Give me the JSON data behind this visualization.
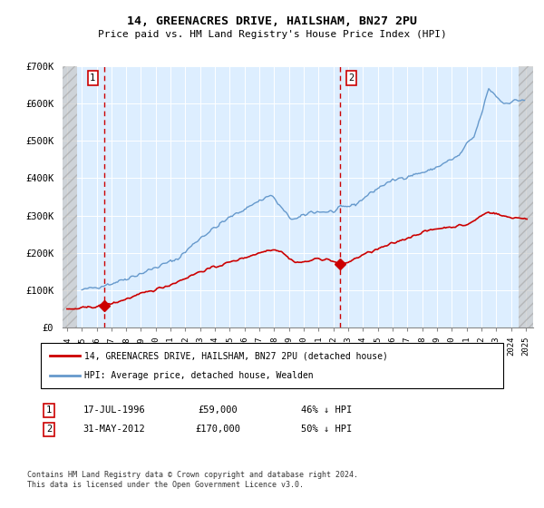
{
  "title": "14, GREENACRES DRIVE, HAILSHAM, BN27 2PU",
  "subtitle": "Price paid vs. HM Land Registry's House Price Index (HPI)",
  "hpi_color": "#6699cc",
  "price_color": "#cc0000",
  "annotation_color": "#cc0000",
  "background_plot": "#ddeeff",
  "ylim": [
    0,
    700000
  ],
  "yticks": [
    0,
    100000,
    200000,
    300000,
    400000,
    500000,
    600000,
    700000
  ],
  "ytick_labels": [
    "£0",
    "£100K",
    "£200K",
    "£300K",
    "£400K",
    "£500K",
    "£600K",
    "£700K"
  ],
  "xlim_start": 1993.7,
  "xlim_end": 2025.5,
  "sale1_year": 1996.54,
  "sale1_price": 59000,
  "sale1_label": "1",
  "sale1_date": "17-JUL-1996",
  "sale1_amount": "£59,000",
  "sale1_pct": "46% ↓ HPI",
  "sale2_year": 2012.42,
  "sale2_price": 170000,
  "sale2_label": "2",
  "sale2_date": "31-MAY-2012",
  "sale2_amount": "£170,000",
  "sale2_pct": "50% ↓ HPI",
  "legend_line1": "14, GREENACRES DRIVE, HAILSHAM, BN27 2PU (detached house)",
  "legend_line2": "HPI: Average price, detached house, Wealden",
  "footer": "Contains HM Land Registry data © Crown copyright and database right 2024.\nThis data is licensed under the Open Government Licence v3.0.",
  "hatch_left_end": 1994.7,
  "hatch_right_start": 2024.5
}
